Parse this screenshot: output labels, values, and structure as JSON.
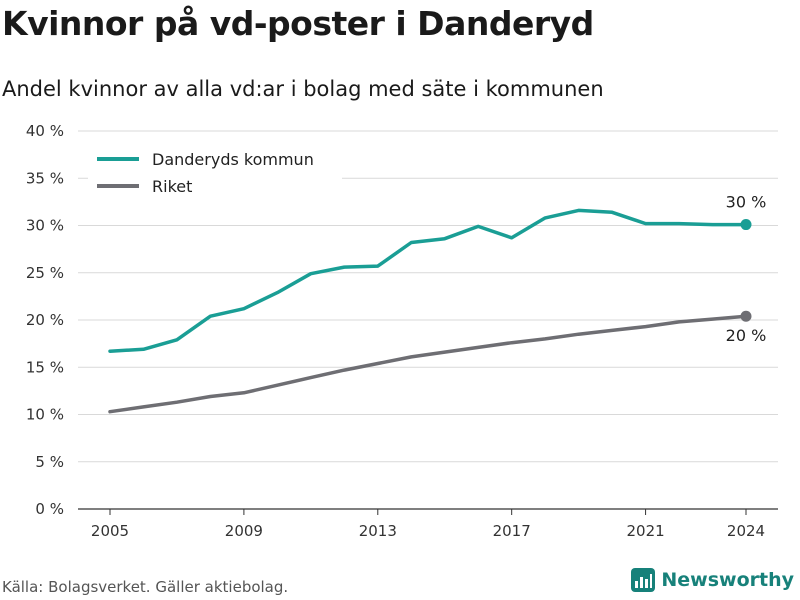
{
  "header": {
    "title": "Kvinnor på vd-poster i Danderyd",
    "subtitle": "Andel kvinnor av alla vd:ar i bolag med säte i kommunen"
  },
  "footer": {
    "source": "Källa: Bolagsverket. Gäller aktiebolag.",
    "brand": "Newsworthy"
  },
  "colors": {
    "danderyd": "#1a9e95",
    "riket": "#6e6e73",
    "grid": "#d9d9d9",
    "brand": "#17817a"
  },
  "chart_data": {
    "type": "line",
    "title": "Kvinnor på vd-poster i Danderyd",
    "subtitle": "Andel kvinnor av alla vd:ar i bolag med säte i kommunen",
    "x": [
      2005,
      2006,
      2007,
      2008,
      2009,
      2010,
      2011,
      2012,
      2013,
      2014,
      2015,
      2016,
      2017,
      2018,
      2019,
      2020,
      2021,
      2022,
      2023,
      2024
    ],
    "xlim": [
      2005,
      2024
    ],
    "xticks": [
      "2005",
      "2009",
      "2013",
      "2017",
      "2021",
      "2024"
    ],
    "ylim": [
      0,
      40
    ],
    "yticks": [
      "0 %",
      "5 %",
      "10 %",
      "15 %",
      "20 %",
      "25 %",
      "30 %",
      "35 %",
      "40 %"
    ],
    "grid": true,
    "legend_position": "top-left",
    "series": [
      {
        "name": "Danderyds kommun",
        "values": [
          16.7,
          16.9,
          17.9,
          20.4,
          21.2,
          22.9,
          24.9,
          25.6,
          25.7,
          28.2,
          28.6,
          29.9,
          28.7,
          30.8,
          31.6,
          31.4,
          30.2,
          30.2,
          30.1,
          30.1
        ],
        "end_label": "30 %"
      },
      {
        "name": "Riket",
        "values": [
          10.3,
          10.8,
          11.3,
          11.9,
          12.3,
          13.1,
          13.9,
          14.7,
          15.4,
          16.1,
          16.6,
          17.1,
          17.6,
          18.0,
          18.5,
          18.9,
          19.3,
          19.8,
          20.1,
          20.4
        ],
        "end_label": "20 %"
      }
    ]
  }
}
